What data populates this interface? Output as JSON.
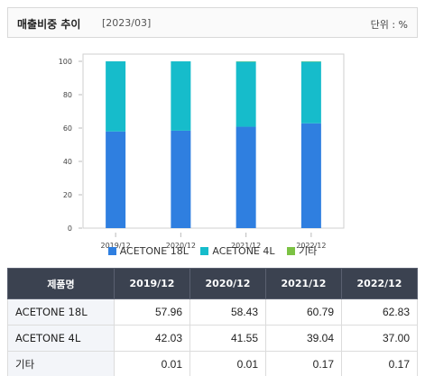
{
  "header": {
    "title": "매출비중 추이",
    "period": "[2023/03]",
    "unit": "단위 : %"
  },
  "colors": {
    "ACETONE 18L": "#2f7fe0",
    "ACETONE 4L": "#16bccb",
    "기타": "#7cc244"
  },
  "chart_data": {
    "type": "bar",
    "stacked": true,
    "categories": [
      "2019/12",
      "2020/12",
      "2021/12",
      "2022/12"
    ],
    "series": [
      {
        "name": "ACETONE 18L",
        "values": [
          57.96,
          58.43,
          60.79,
          62.83
        ]
      },
      {
        "name": "ACETONE 4L",
        "values": [
          42.03,
          41.55,
          39.04,
          37.0
        ]
      },
      {
        "name": "기타",
        "values": [
          0.01,
          0.01,
          0.17,
          0.17
        ]
      }
    ],
    "yticks": [
      0,
      20,
      40,
      60,
      80,
      100
    ],
    "ylim": [
      0,
      100
    ],
    "legend_position": "bottom",
    "grid": false
  },
  "table": {
    "header": [
      "제품명",
      "2019/12",
      "2020/12",
      "2021/12",
      "2022/12"
    ],
    "rows": [
      {
        "name": "ACETONE 18L",
        "values": [
          "57.96",
          "58.43",
          "60.79",
          "62.83"
        ]
      },
      {
        "name": "ACETONE 4L",
        "values": [
          "42.03",
          "41.55",
          "39.04",
          "37.00"
        ]
      },
      {
        "name": "기타",
        "values": [
          "0.01",
          "0.01",
          "0.17",
          "0.17"
        ]
      }
    ]
  }
}
